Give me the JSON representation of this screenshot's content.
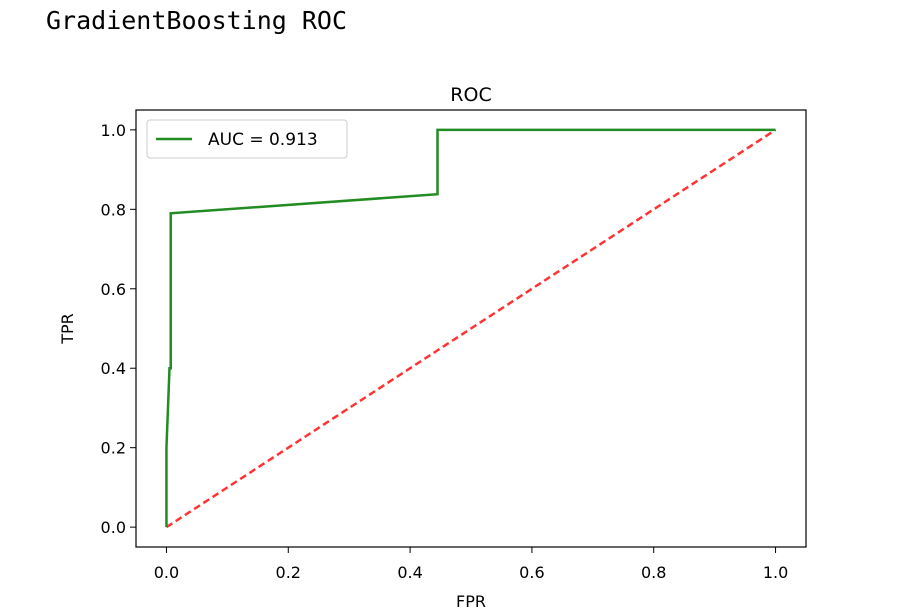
{
  "cell_output": {
    "printed_text": "GradientBoosting ROC"
  },
  "chart_data": {
    "type": "line",
    "title": "ROC",
    "xlabel": "FPR",
    "ylabel": "TPR",
    "xlim": [
      -0.05,
      1.05
    ],
    "ylim": [
      -0.05,
      1.05
    ],
    "xticks": [
      0.0,
      0.2,
      0.4,
      0.6,
      0.8,
      1.0
    ],
    "yticks": [
      0.0,
      0.2,
      0.4,
      0.6,
      0.8,
      1.0
    ],
    "xtick_labels": [
      "0.0",
      "0.2",
      "0.4",
      "0.6",
      "0.8",
      "1.0"
    ],
    "ytick_labels": [
      "0.0",
      "0.2",
      "0.4",
      "0.6",
      "0.8",
      "1.0"
    ],
    "grid": false,
    "legend_position": "upper-left",
    "series": [
      {
        "name": "AUC = 0.913",
        "color": "#228b22",
        "style": "solid",
        "x": [
          0.0,
          0.0,
          0.0,
          0.005,
          0.007,
          0.007,
          0.445,
          0.445,
          1.0
        ],
        "y": [
          0.0,
          0.2,
          0.2,
          0.4,
          0.4,
          0.79,
          0.838,
          1.0,
          1.0
        ]
      },
      {
        "color": "#ff3333",
        "style": "dashed",
        "x": [
          0.0,
          1.0
        ],
        "y": [
          0.0,
          1.0
        ]
      }
    ]
  }
}
